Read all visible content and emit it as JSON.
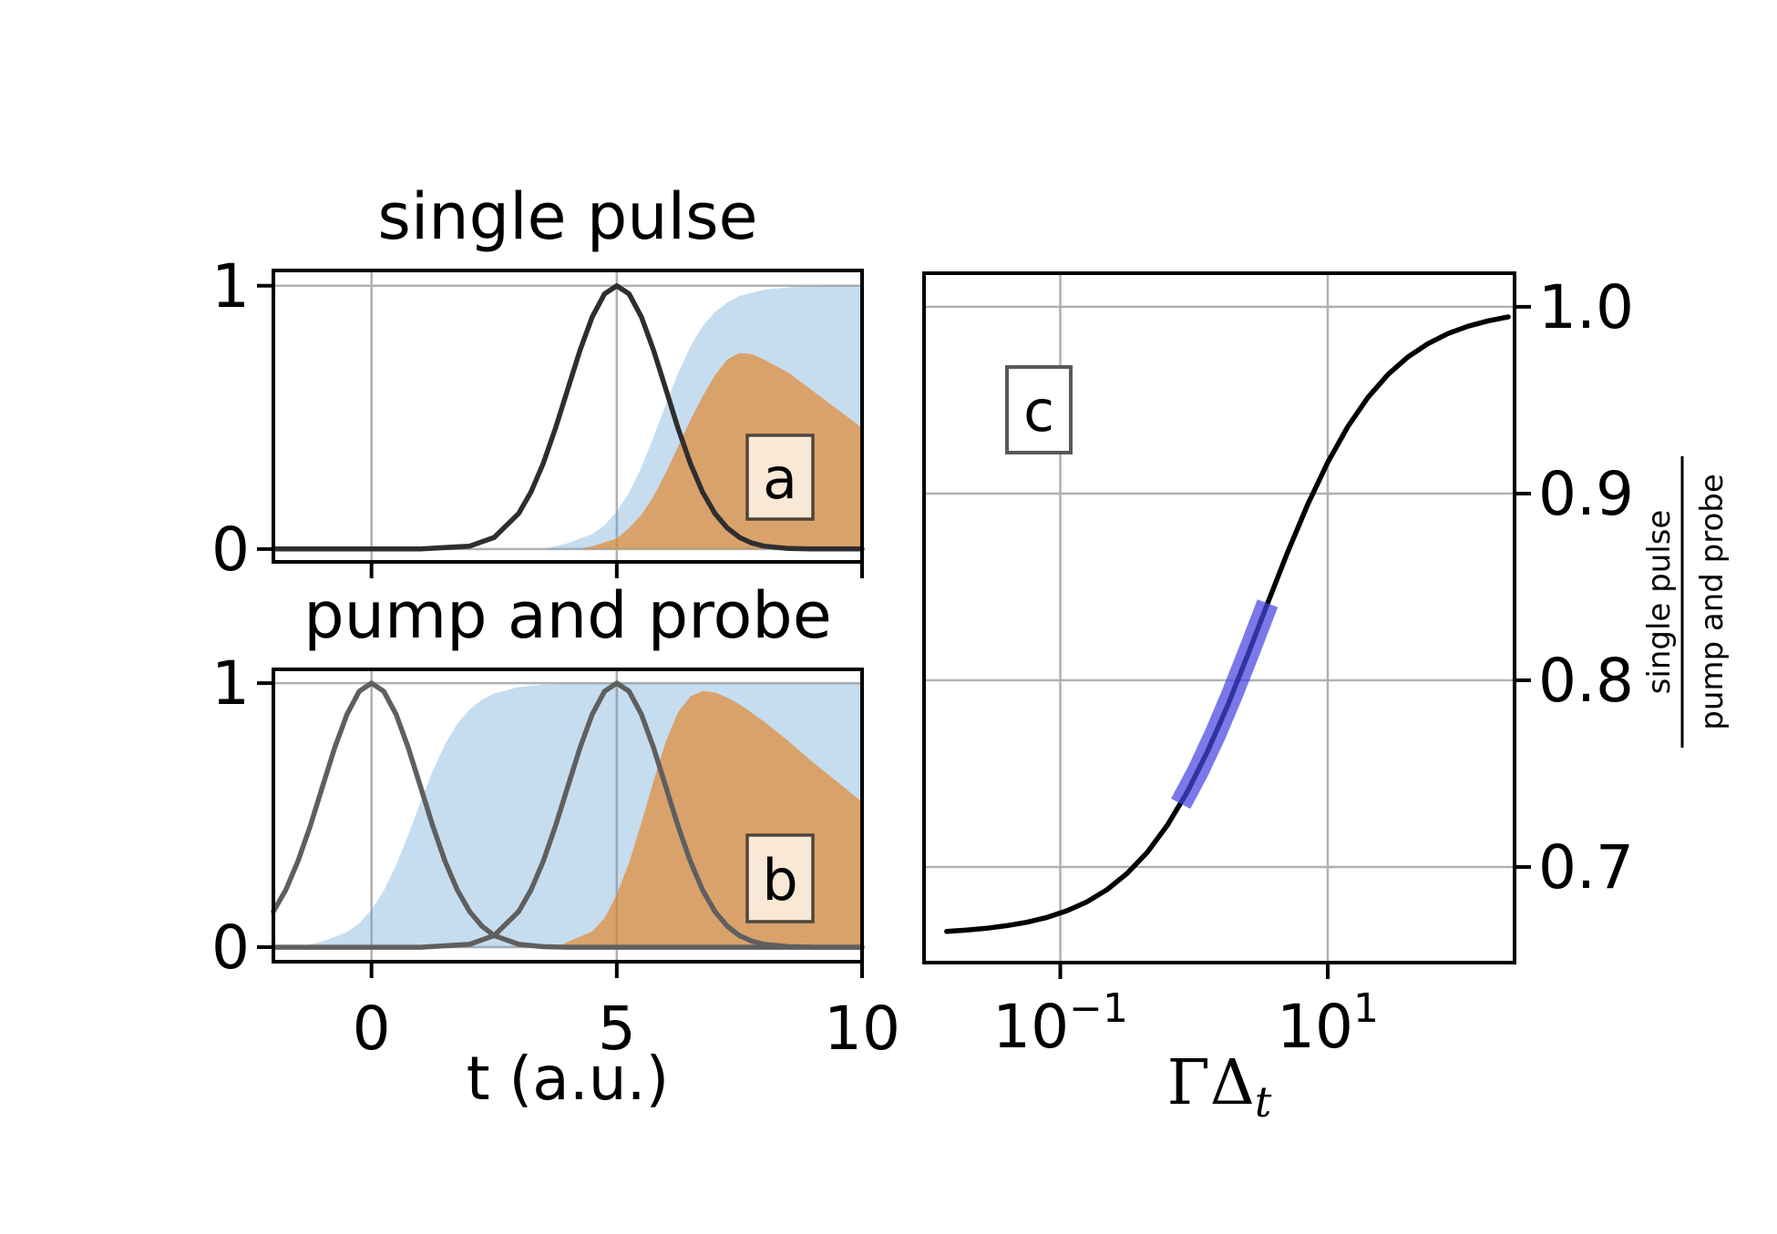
{
  "colors": {
    "background": "#ffffff",
    "grid": "#b0b0b0",
    "spine": "#000000",
    "fill_blue": "rgba(98,160,210,0.36)",
    "fill_orange": "rgba(228,130,35,0.65)",
    "line_dark": "#2e2e2e",
    "line_gray": "#5f5f5f",
    "line_black": "#000000",
    "band_blue": "#4545e0",
    "tag_box_fill": "#f9e8d5",
    "tag_box_stroke": "#4f463c",
    "tag_box_c_fill": "#ffffff",
    "tag_box_c_stroke": "#595959"
  },
  "chart_data": [
    {
      "id": "a",
      "type": "area",
      "tag": "a",
      "title": "single pulse",
      "xlabel": "",
      "xlim": [
        -2,
        10
      ],
      "ylim": [
        -0.049,
        1.058
      ],
      "xgrid": [
        0,
        5
      ],
      "ygrid": [
        0,
        1
      ],
      "xticks": [
        {
          "v": 0,
          "label": ""
        },
        {
          "v": 5,
          "label": ""
        },
        {
          "v": 10,
          "label": ""
        }
      ],
      "yticks": [
        {
          "v": 1,
          "label": "1"
        },
        {
          "v": 0,
          "label": "0"
        }
      ],
      "series": [
        {
          "name": "excited-state-fill",
          "kind": "fill",
          "color": "fill_blue",
          "points": [
            [
              3.5,
              0
            ],
            [
              4,
              0.022
            ],
            [
              4.5,
              0.057
            ],
            [
              4.75,
              0.09
            ],
            [
              5,
              0.142
            ],
            [
              5.25,
              0.214
            ],
            [
              5.5,
              0.31
            ],
            [
              5.75,
              0.426
            ],
            [
              6,
              0.55
            ],
            [
              6.25,
              0.668
            ],
            [
              6.5,
              0.769
            ],
            [
              6.75,
              0.846
            ],
            [
              7,
              0.9
            ],
            [
              7.25,
              0.937
            ],
            [
              7.5,
              0.961
            ],
            [
              8,
              0.985
            ],
            [
              8.5,
              0.994
            ],
            [
              9,
              0.998
            ],
            [
              10,
              1
            ]
          ]
        },
        {
          "name": "fluorescence-fill",
          "kind": "fill",
          "color": "fill_orange",
          "points": [
            [
              4.25,
              0
            ],
            [
              4.5,
              0.01
            ],
            [
              5,
              0.04
            ],
            [
              5.25,
              0.08
            ],
            [
              5.5,
              0.13
            ],
            [
              5.75,
              0.2
            ],
            [
              6,
              0.29
            ],
            [
              6.25,
              0.39
            ],
            [
              6.5,
              0.49
            ],
            [
              6.75,
              0.58
            ],
            [
              7,
              0.66
            ],
            [
              7.25,
              0.72
            ],
            [
              7.5,
              0.745
            ],
            [
              7.75,
              0.74
            ],
            [
              8,
              0.72
            ],
            [
              8.5,
              0.67
            ],
            [
              9,
              0.6
            ],
            [
              9.5,
              0.53
            ],
            [
              10,
              0.46
            ]
          ]
        },
        {
          "name": "pulse-envelope",
          "kind": "line",
          "color": "line_dark",
          "points": [
            [
              -2,
              0
            ],
            [
              1,
              0
            ],
            [
              2,
              0.011
            ],
            [
              2.5,
              0.044
            ],
            [
              3,
              0.135
            ],
            [
              3.25,
              0.216
            ],
            [
              3.5,
              0.325
            ],
            [
              3.75,
              0.458
            ],
            [
              4,
              0.607
            ],
            [
              4.25,
              0.755
            ],
            [
              4.5,
              0.882
            ],
            [
              4.75,
              0.969
            ],
            [
              5,
              1
            ],
            [
              5.25,
              0.969
            ],
            [
              5.5,
              0.882
            ],
            [
              5.75,
              0.755
            ],
            [
              6,
              0.607
            ],
            [
              6.25,
              0.458
            ],
            [
              6.5,
              0.325
            ],
            [
              6.75,
              0.216
            ],
            [
              7,
              0.135
            ],
            [
              7.25,
              0.08
            ],
            [
              7.5,
              0.044
            ],
            [
              7.75,
              0.023
            ],
            [
              8,
              0.011
            ],
            [
              8.5,
              0.002
            ],
            [
              9,
              0
            ],
            [
              10,
              0
            ]
          ]
        }
      ]
    },
    {
      "id": "b",
      "type": "area",
      "tag": "b",
      "title": "pump and probe",
      "xlabel": "t (a.u.)",
      "xlim": [
        -2,
        10
      ],
      "ylim": [
        -0.055,
        1.052
      ],
      "xgrid": [
        0,
        5
      ],
      "ygrid": [
        0,
        1
      ],
      "xticks": [
        {
          "v": 0,
          "label": "0"
        },
        {
          "v": 5,
          "label": "5"
        },
        {
          "v": 10,
          "label": "10"
        }
      ],
      "yticks": [
        {
          "v": 1,
          "label": "1"
        },
        {
          "v": 0,
          "label": "0"
        }
      ],
      "series": [
        {
          "name": "excited-state-fill",
          "kind": "fill",
          "color": "fill_blue",
          "points": [
            [
              -1.5,
              0
            ],
            [
              -1,
              0.022
            ],
            [
              -0.5,
              0.057
            ],
            [
              -0.25,
              0.09
            ],
            [
              0,
              0.142
            ],
            [
              0.25,
              0.214
            ],
            [
              0.5,
              0.31
            ],
            [
              0.75,
              0.426
            ],
            [
              1,
              0.55
            ],
            [
              1.25,
              0.668
            ],
            [
              1.5,
              0.769
            ],
            [
              1.75,
              0.846
            ],
            [
              2,
              0.9
            ],
            [
              2.25,
              0.937
            ],
            [
              2.5,
              0.961
            ],
            [
              3,
              0.985
            ],
            [
              3.5,
              0.994
            ],
            [
              4,
              0.998
            ],
            [
              5,
              1
            ],
            [
              10,
              1
            ]
          ]
        },
        {
          "name": "fluorescence-fill",
          "kind": "fill",
          "color": "fill_orange",
          "points": [
            [
              3.75,
              0
            ],
            [
              4,
              0.02
            ],
            [
              4.5,
              0.06
            ],
            [
              4.75,
              0.11
            ],
            [
              5,
              0.2
            ],
            [
              5.25,
              0.32
            ],
            [
              5.5,
              0.47
            ],
            [
              5.75,
              0.63
            ],
            [
              6,
              0.78
            ],
            [
              6.25,
              0.89
            ],
            [
              6.5,
              0.95
            ],
            [
              6.75,
              0.97
            ],
            [
              7,
              0.965
            ],
            [
              7.25,
              0.945
            ],
            [
              7.5,
              0.92
            ],
            [
              8,
              0.855
            ],
            [
              8.5,
              0.78
            ],
            [
              9,
              0.7
            ],
            [
              9.5,
              0.625
            ],
            [
              10,
              0.55
            ]
          ]
        },
        {
          "name": "pump-pulse-envelope",
          "kind": "line",
          "color": "line_gray",
          "points": [
            [
              -2,
              0.135
            ],
            [
              -1.75,
              0.216
            ],
            [
              -1.5,
              0.325
            ],
            [
              -1.25,
              0.458
            ],
            [
              -1,
              0.607
            ],
            [
              -0.75,
              0.755
            ],
            [
              -0.5,
              0.882
            ],
            [
              -0.25,
              0.969
            ],
            [
              0,
              1
            ],
            [
              0.25,
              0.969
            ],
            [
              0.5,
              0.882
            ],
            [
              0.75,
              0.755
            ],
            [
              1,
              0.607
            ],
            [
              1.25,
              0.458
            ],
            [
              1.5,
              0.325
            ],
            [
              1.75,
              0.216
            ],
            [
              2,
              0.135
            ],
            [
              2.25,
              0.08
            ],
            [
              2.5,
              0.044
            ],
            [
              3,
              0.011
            ],
            [
              3.5,
              0.002
            ],
            [
              4,
              0
            ],
            [
              10,
              0
            ]
          ]
        },
        {
          "name": "probe-pulse-envelope",
          "kind": "line",
          "color": "line_gray",
          "points": [
            [
              -2,
              0
            ],
            [
              1,
              0
            ],
            [
              2,
              0.011
            ],
            [
              2.5,
              0.044
            ],
            [
              3,
              0.135
            ],
            [
              3.25,
              0.216
            ],
            [
              3.5,
              0.325
            ],
            [
              3.75,
              0.458
            ],
            [
              4,
              0.607
            ],
            [
              4.25,
              0.755
            ],
            [
              4.5,
              0.882
            ],
            [
              4.75,
              0.969
            ],
            [
              5,
              1
            ],
            [
              5.25,
              0.969
            ],
            [
              5.5,
              0.882
            ],
            [
              5.75,
              0.755
            ],
            [
              6,
              0.607
            ],
            [
              6.25,
              0.458
            ],
            [
              6.5,
              0.325
            ],
            [
              6.75,
              0.216
            ],
            [
              7,
              0.135
            ],
            [
              7.25,
              0.08
            ],
            [
              7.5,
              0.044
            ],
            [
              7.75,
              0.023
            ],
            [
              8,
              0.011
            ],
            [
              8.5,
              0.002
            ],
            [
              9,
              0
            ],
            [
              10,
              0
            ]
          ]
        }
      ]
    },
    {
      "id": "c",
      "type": "line",
      "tag": "c",
      "xscale": "log",
      "xlabel_main": "ΓΔ",
      "xlabel_sub": "t",
      "ylabel_numerator": "single pulse",
      "ylabel_denominator": "pump and probe",
      "xlim": [
        0.0096,
        250
      ],
      "xlim_log10": [
        -2.019,
        2.397
      ],
      "ylim": [
        0.6488,
        1.018
      ],
      "xgrid_log10": [
        -1,
        1
      ],
      "ygrid": [
        1.0,
        0.9,
        0.8,
        0.7
      ],
      "xticks": [
        {
          "log10": -1,
          "base": "10",
          "exp": "−1"
        },
        {
          "log10": 1,
          "base": "10",
          "exp": "1"
        }
      ],
      "yticks": [
        {
          "v": 1.0,
          "label": "1.0"
        },
        {
          "v": 0.9,
          "label": "0.9"
        },
        {
          "v": 0.8,
          "label": "0.8"
        },
        {
          "v": 0.7,
          "label": "0.7"
        }
      ],
      "series": [
        {
          "name": "ratio-curve",
          "kind": "line",
          "color": "line_black",
          "points": [
            [
              -1.85,
              0.6655
            ],
            [
              -1.7,
              0.6662
            ],
            [
              -1.55,
              0.6672
            ],
            [
              -1.4,
              0.6686
            ],
            [
              -1.25,
              0.6704
            ],
            [
              -1.1,
              0.673
            ],
            [
              -0.95,
              0.6766
            ],
            [
              -0.8,
              0.6814
            ],
            [
              -0.65,
              0.6879
            ],
            [
              -0.5,
              0.6966
            ],
            [
              -0.35,
              0.7078
            ],
            [
              -0.2,
              0.7223
            ],
            [
              -0.05,
              0.7402
            ],
            [
              0.1,
              0.7617
            ],
            [
              0.25,
              0.7863
            ],
            [
              0.4,
              0.8133
            ],
            [
              0.55,
              0.8412
            ],
            [
              0.7,
              0.8686
            ],
            [
              0.85,
              0.8941
            ],
            [
              1.0,
              0.9167
            ],
            [
              1.15,
              0.9358
            ],
            [
              1.3,
              0.9514
            ],
            [
              1.45,
              0.9637
            ],
            [
              1.6,
              0.9732
            ],
            [
              1.75,
              0.9803
            ],
            [
              1.9,
              0.9857
            ],
            [
              2.05,
              0.9896
            ],
            [
              2.2,
              0.9925
            ],
            [
              2.35,
              0.9946
            ]
          ]
        }
      ],
      "highlight_segment": {
        "name": "highlighted-ratio-range",
        "points": [
          [
            -0.1,
            0.7339
          ],
          [
            0.03,
            0.7513
          ],
          [
            0.16,
            0.7712
          ],
          [
            0.29,
            0.7933
          ],
          [
            0.42,
            0.8169
          ],
          [
            0.55,
            0.8412
          ]
        ]
      }
    }
  ]
}
